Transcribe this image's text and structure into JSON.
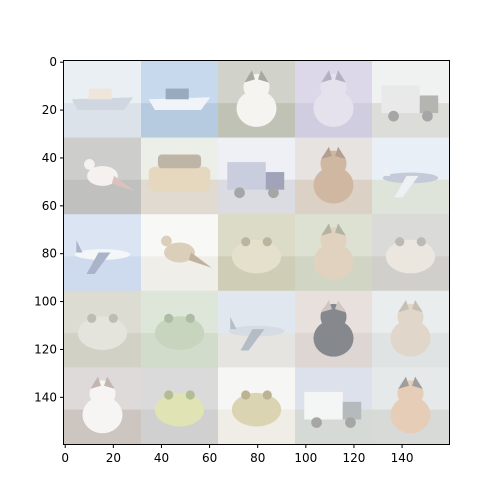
{
  "figure": {
    "x_ticks": [
      "0",
      "20",
      "40",
      "60",
      "80",
      "100",
      "120",
      "140"
    ],
    "y_ticks": [
      "0",
      "20",
      "40",
      "60",
      "80",
      "100",
      "120",
      "140"
    ],
    "grid": {
      "rows": 5,
      "cols": 5,
      "tiles": [
        {
          "subject": "ship",
          "sky": "#dfe6ee",
          "ground": "#c9d3dd",
          "object": "#b7c2cf",
          "accent": "#e7d9c8"
        },
        {
          "subject": "boat",
          "sky": "#a9c7e3",
          "ground": "#8fb0cf",
          "object": "#e8eef4",
          "accent": "#5f7e9c"
        },
        {
          "subject": "dog",
          "sky": "#b9bcae",
          "ground": "#9ea18f",
          "object": "#f1efe8",
          "accent": "#7b7a68"
        },
        {
          "subject": "cat",
          "sky": "#c9c3dd",
          "ground": "#b9b2d1",
          "object": "#d9d3e3",
          "accent": "#8c86a0"
        },
        {
          "subject": "truck",
          "sky": "#e9ecec",
          "ground": "#c9c9c4",
          "object": "#dedede",
          "accent": "#8d8d88"
        },
        {
          "subject": "bird",
          "sky": "#b3b3b1",
          "ground": "#9f9f9b",
          "object": "#efeae6",
          "accent": "#c9a29b"
        },
        {
          "subject": "car",
          "sky": "#e2e5dc",
          "ground": "#cfc6b7",
          "object": "#d8c39d",
          "accent": "#9c8e78"
        },
        {
          "subject": "truck",
          "sky": "#e6e9f0",
          "ground": "#c6c9d3",
          "object": "#aeb2cb",
          "accent": "#6d7294"
        },
        {
          "subject": "dog",
          "sky": "#d9d4cf",
          "ground": "#c8b8a6",
          "object": "#b79171",
          "accent": "#8b6c55"
        },
        {
          "subject": "airplane",
          "sky": "#dde6f1",
          "ground": "#cdd6c6",
          "object": "#a7aec5",
          "accent": "#e3e8ee"
        },
        {
          "subject": "airplane",
          "sky": "#c6d6ec",
          "ground": "#b4c7e3",
          "object": "#eef1f5",
          "accent": "#7b8db0"
        },
        {
          "subject": "bird",
          "sky": "#f4f4f2",
          "ground": "#e9e5dc",
          "object": "#c8b694",
          "accent": "#a08a66"
        },
        {
          "subject": "frog",
          "sky": "#c9c8a9",
          "ground": "#b6b38f",
          "object": "#d6d0b0",
          "accent": "#94906b"
        },
        {
          "subject": "dog",
          "sky": "#c9d1ba",
          "ground": "#b8bfa4",
          "object": "#d2bb9e",
          "accent": "#8b8a6f"
        },
        {
          "subject": "frog",
          "sky": "#c7c6c3",
          "ground": "#b7b5b1",
          "object": "#e1d9cc",
          "accent": "#9a958e"
        },
        {
          "subject": "frog",
          "sky": "#c9cabb",
          "ground": "#b8b8a6",
          "object": "#d6d6ca",
          "accent": "#9a9a88"
        },
        {
          "subject": "frog",
          "sky": "#cdd9c6",
          "ground": "#b9caae",
          "object": "#a9bf9b",
          "accent": "#7f9a72"
        },
        {
          "subject": "airplane",
          "sky": "#cfdbe6",
          "ground": "#d9d6cf",
          "object": "#bfc9d6",
          "accent": "#8d98a7"
        },
        {
          "subject": "cat",
          "sky": "#dacfcb",
          "ground": "#cdc1bb",
          "object": "#444a52",
          "accent": "#b7aaa3"
        },
        {
          "subject": "cat",
          "sky": "#dfe3e3",
          "ground": "#cfd5d4",
          "object": "#cfc0ac",
          "accent": "#a99d8c"
        },
        {
          "subject": "dog",
          "sky": "#cbc7c5",
          "ground": "#b3a79f",
          "object": "#f2f0ef",
          "accent": "#a38f84"
        },
        {
          "subject": "frog",
          "sky": "#c5c6c5",
          "ground": "#b6b7b5",
          "object": "#cfd58d",
          "accent": "#8b9a5a"
        },
        {
          "subject": "frog",
          "sky": "#f2f2ee",
          "ground": "#e7e4d9",
          "object": "#c8bd8b",
          "accent": "#988b5a"
        },
        {
          "subject": "truck",
          "sky": "#c9d2e0",
          "ground": "#bfc6c2",
          "object": "#eef0f0",
          "accent": "#8e959a"
        },
        {
          "subject": "dog",
          "sky": "#d9dddf",
          "ground": "#c4c7c4",
          "object": "#d7b392",
          "accent": "#6c6a68"
        }
      ]
    }
  }
}
